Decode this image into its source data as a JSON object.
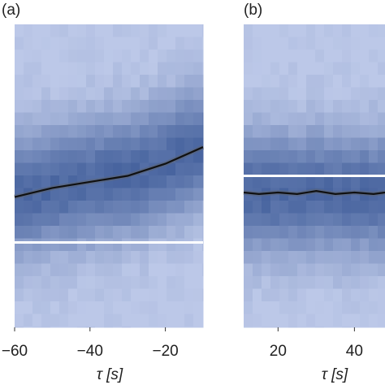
{
  "chart_data": [
    {
      "type": "line",
      "title": "(a)",
      "xlabel": "τ [s]",
      "x": [
        -60,
        -50,
        -40,
        -30,
        -20,
        -10
      ],
      "series": [
        {
          "color": "#111111",
          "values": [
            0.43,
            0.46,
            0.48,
            0.5,
            0.54,
            0.595
          ]
        }
      ],
      "hline": 0.28,
      "xlim": [
        -60,
        -10
      ],
      "xticks": [
        {
          "value": -60,
          "label": "−60"
        },
        {
          "value": -40,
          "label": "−40"
        },
        {
          "value": -20,
          "label": "−20"
        }
      ],
      "ylim": [
        0,
        1
      ]
    },
    {
      "type": "line",
      "title": "(b)",
      "xlabel": "τ [s]",
      "x": [
        11,
        15,
        20,
        25,
        30,
        35,
        40,
        45,
        48
      ],
      "series": [
        {
          "color": "#111111",
          "values": [
            0.445,
            0.44,
            0.445,
            0.44,
            0.45,
            0.44,
            0.445,
            0.44,
            0.445
          ]
        }
      ],
      "hline": 0.5,
      "xlim": [
        11,
        48
      ],
      "xticks": [
        20,
        40
      ],
      "ylim": [
        0,
        1
      ]
    }
  ]
}
